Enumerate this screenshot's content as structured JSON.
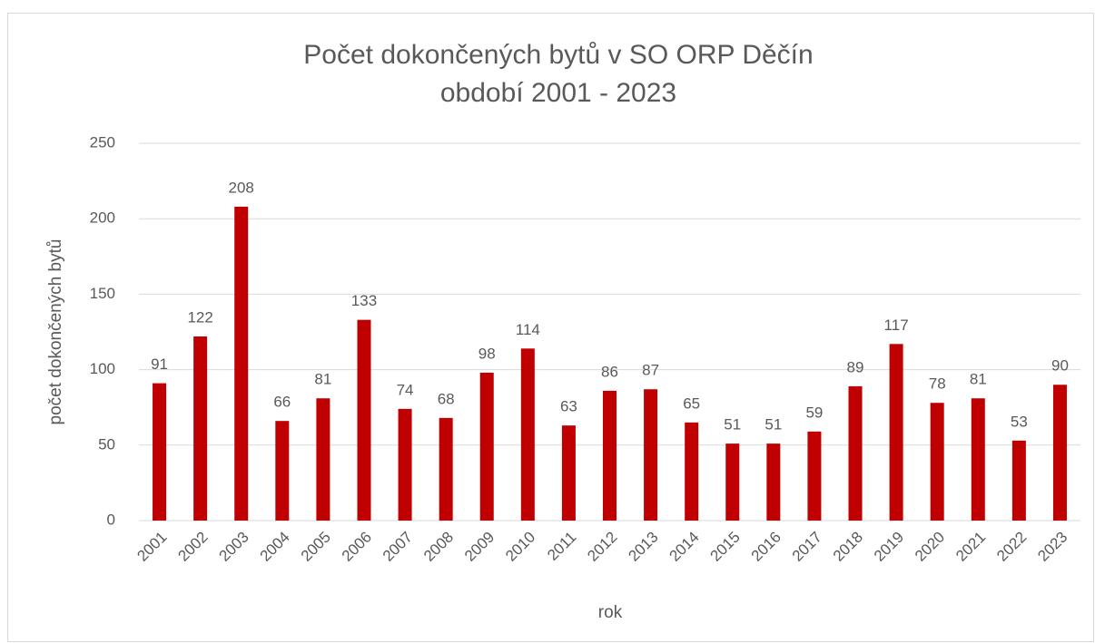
{
  "chart_data": {
    "type": "bar",
    "title": [
      "Počet dokončených bytů v SO ORP Děčín",
      "období 2001 - 2023"
    ],
    "x_label": "rok",
    "y_label": "počet dokončených bytů",
    "categories": [
      "2001",
      "2002",
      "2003",
      "2004",
      "2005",
      "2006",
      "2007",
      "2008",
      "2009",
      "2010",
      "2011",
      "2012",
      "2013",
      "2014",
      "2015",
      "2016",
      "2017",
      "2018",
      "2019",
      "2020",
      "2021",
      "2022",
      "2023"
    ],
    "values": [
      91,
      122,
      208,
      66,
      81,
      133,
      74,
      68,
      98,
      114,
      63,
      86,
      87,
      65,
      51,
      51,
      59,
      89,
      117,
      78,
      81,
      53,
      90
    ],
    "color": "#c00000",
    "ylim": [
      0,
      250
    ],
    "yticks": [
      0,
      50,
      100,
      150,
      200,
      250
    ],
    "grid": true
  }
}
